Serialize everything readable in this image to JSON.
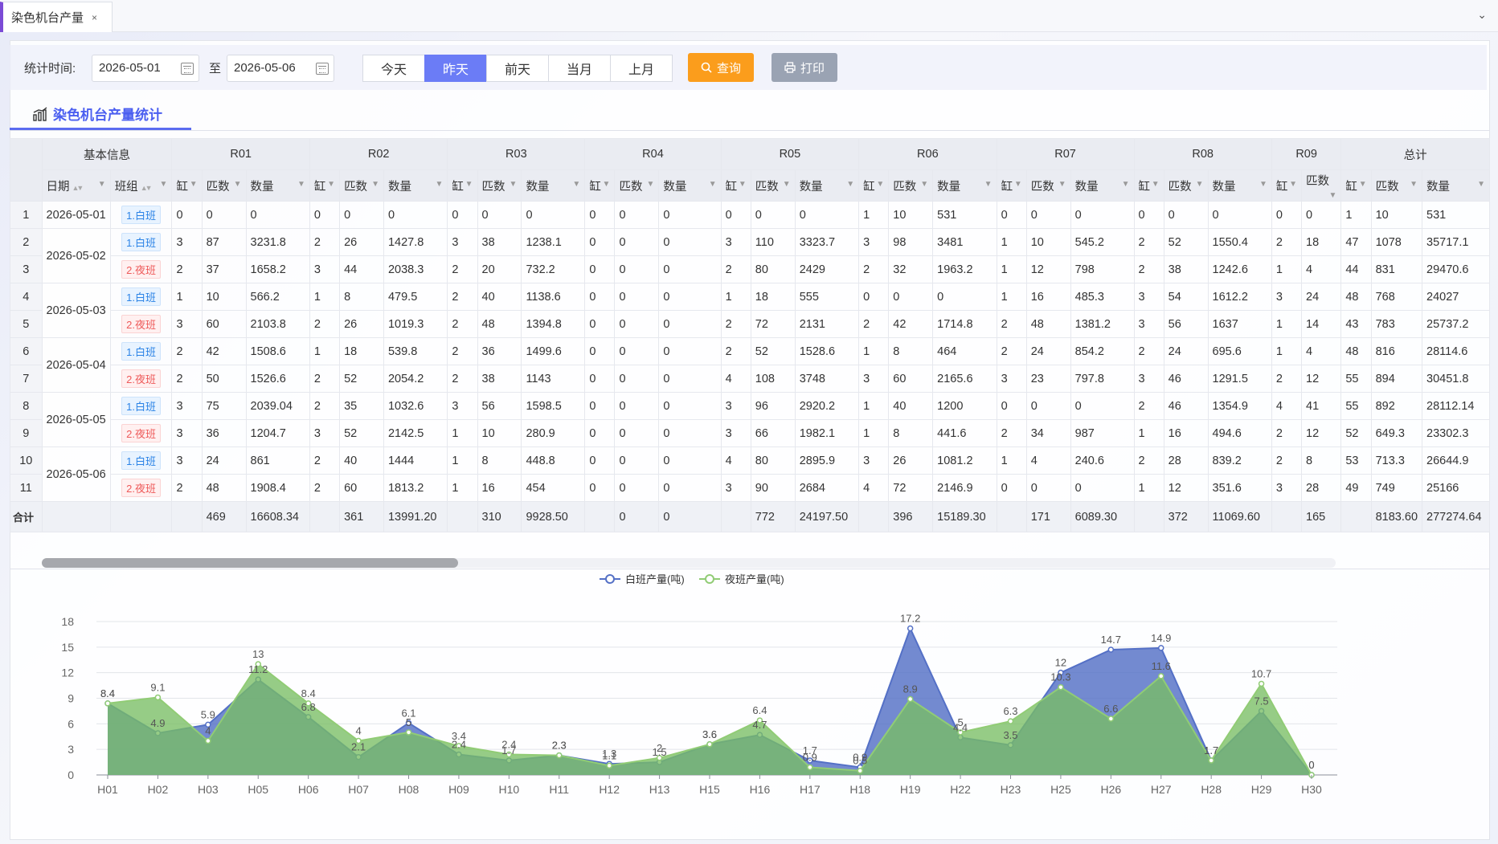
{
  "tabs": [
    {
      "label": "染色机台产量",
      "close": "×"
    }
  ],
  "tab_dropdown": "⌄",
  "filter": {
    "label": "统计时间:",
    "start": "2026-05-01",
    "sep": "至",
    "end": "2026-05-06",
    "quick": [
      {
        "label": "今天",
        "active": false
      },
      {
        "label": "昨天",
        "active": true
      },
      {
        "label": "前天",
        "active": false
      },
      {
        "label": "当月",
        "active": false
      },
      {
        "label": "上月",
        "active": false
      }
    ],
    "query_label": "查询",
    "print_label": "打印"
  },
  "section_title": "染色机台产量统计",
  "colors": {
    "accent": "#6b7cf6",
    "query": "#fb9d1c",
    "day_series": "#5470c6",
    "night_series": "#91cc75"
  },
  "table": {
    "group_basic": "基本信息",
    "groups": [
      "R01",
      "R02",
      "R03",
      "R04",
      "R05",
      "R06",
      "R07",
      "R08",
      "R09"
    ],
    "group_total": "总计",
    "col_date": "日期",
    "col_shift": "班组",
    "sub_cols": [
      "缸",
      "匹数",
      "数量"
    ],
    "rows": [
      {
        "n": "1",
        "date": "2026-05-01",
        "shift": "1.白班",
        "type": "day",
        "v": [
          "0",
          "0",
          "0",
          "0",
          "0",
          "0",
          "0",
          "0",
          "0",
          "0",
          "0",
          "0",
          "0",
          "0",
          "0",
          "1",
          "10",
          "531",
          "0",
          "0",
          "0",
          "0",
          "0",
          "0",
          "0",
          "0",
          "1",
          "10",
          "531"
        ]
      },
      {
        "n": "2",
        "date": "2026-05-02",
        "shift": "1.白班",
        "type": "day",
        "v": [
          "3",
          "87",
          "3231.8",
          "2",
          "26",
          "1427.8",
          "3",
          "38",
          "1238.1",
          "0",
          "0",
          "0",
          "3",
          "110",
          "3323.7",
          "3",
          "98",
          "3481",
          "1",
          "10",
          "545.2",
          "2",
          "52",
          "1550.4",
          "2",
          "18",
          "47",
          "1078",
          "35717.1"
        ]
      },
      {
        "n": "3",
        "date": "",
        "shift": "2.夜班",
        "type": "night",
        "v": [
          "2",
          "37",
          "1658.2",
          "3",
          "44",
          "2038.3",
          "2",
          "20",
          "732.2",
          "0",
          "0",
          "0",
          "2",
          "80",
          "2429",
          "2",
          "32",
          "1963.2",
          "1",
          "12",
          "798",
          "2",
          "38",
          "1242.6",
          "1",
          "4",
          "44",
          "831",
          "29470.6"
        ]
      },
      {
        "n": "4",
        "date": "2026-05-03",
        "shift": "1.白班",
        "type": "day",
        "v": [
          "1",
          "10",
          "566.2",
          "1",
          "8",
          "479.5",
          "2",
          "40",
          "1138.6",
          "0",
          "0",
          "0",
          "1",
          "18",
          "555",
          "0",
          "0",
          "0",
          "1",
          "16",
          "485.3",
          "3",
          "54",
          "1612.2",
          "3",
          "24",
          "48",
          "768",
          "24027"
        ]
      },
      {
        "n": "5",
        "date": "",
        "shift": "2.夜班",
        "type": "night",
        "v": [
          "3",
          "60",
          "2103.8",
          "2",
          "26",
          "1019.3",
          "2",
          "48",
          "1394.8",
          "0",
          "0",
          "0",
          "2",
          "72",
          "2131",
          "2",
          "42",
          "1714.8",
          "2",
          "48",
          "1381.2",
          "3",
          "56",
          "1637",
          "1",
          "14",
          "43",
          "783",
          "25737.2"
        ]
      },
      {
        "n": "6",
        "date": "2026-05-04",
        "shift": "1.白班",
        "type": "day",
        "v": [
          "2",
          "42",
          "1508.6",
          "1",
          "18",
          "539.8",
          "2",
          "36",
          "1499.6",
          "0",
          "0",
          "0",
          "2",
          "52",
          "1528.6",
          "1",
          "8",
          "464",
          "2",
          "24",
          "854.2",
          "2",
          "24",
          "695.6",
          "1",
          "4",
          "48",
          "816",
          "28114.6"
        ]
      },
      {
        "n": "7",
        "date": "",
        "shift": "2.夜班",
        "type": "night",
        "v": [
          "2",
          "50",
          "1526.6",
          "2",
          "52",
          "2054.2",
          "2",
          "38",
          "1143",
          "0",
          "0",
          "0",
          "4",
          "108",
          "3748",
          "3",
          "60",
          "2165.6",
          "3",
          "23",
          "797.8",
          "3",
          "46",
          "1291.5",
          "2",
          "12",
          "55",
          "894",
          "30451.8"
        ]
      },
      {
        "n": "8",
        "date": "2026-05-05",
        "shift": "1.白班",
        "type": "day",
        "v": [
          "3",
          "75",
          "2039.04",
          "2",
          "35",
          "1032.6",
          "3",
          "56",
          "1598.5",
          "0",
          "0",
          "0",
          "3",
          "96",
          "2920.2",
          "1",
          "40",
          "1200",
          "0",
          "0",
          "0",
          "2",
          "46",
          "1354.9",
          "4",
          "41",
          "55",
          "892",
          "28112.14"
        ]
      },
      {
        "n": "9",
        "date": "",
        "shift": "2.夜班",
        "type": "night",
        "v": [
          "3",
          "36",
          "1204.7",
          "3",
          "52",
          "2142.5",
          "1",
          "10",
          "280.9",
          "0",
          "0",
          "0",
          "3",
          "66",
          "1982.1",
          "1",
          "8",
          "441.6",
          "2",
          "34",
          "987",
          "1",
          "16",
          "494.6",
          "2",
          "12",
          "52",
          "649.3",
          "23302.3"
        ]
      },
      {
        "n": "10",
        "date": "2026-05-06",
        "shift": "1.白班",
        "type": "day",
        "v": [
          "3",
          "24",
          "861",
          "2",
          "40",
          "1444",
          "1",
          "8",
          "448.8",
          "0",
          "0",
          "0",
          "4",
          "80",
          "2895.9",
          "3",
          "26",
          "1081.2",
          "1",
          "4",
          "240.6",
          "2",
          "28",
          "839.2",
          "2",
          "8",
          "53",
          "713.3",
          "26644.9"
        ]
      },
      {
        "n": "11",
        "date": "",
        "shift": "2.夜班",
        "type": "night",
        "v": [
          "2",
          "48",
          "1908.4",
          "2",
          "60",
          "1813.2",
          "1",
          "16",
          "454",
          "0",
          "0",
          "0",
          "3",
          "90",
          "2684",
          "4",
          "72",
          "2146.9",
          "0",
          "0",
          "0",
          "1",
          "12",
          "351.6",
          "3",
          "28",
          "49",
          "749",
          "25166"
        ]
      }
    ],
    "total_label": "合计",
    "total": [
      "",
      "469",
      "16608.34",
      "",
      "361",
      "13991.20",
      "",
      "310",
      "9928.50",
      "",
      "0",
      "0",
      "",
      "772",
      "24197.50",
      "",
      "396",
      "15189.30",
      "",
      "171",
      "6089.30",
      "",
      "372",
      "11069.60",
      "",
      "165",
      "",
      "8183.60",
      "277274.64"
    ]
  },
  "chart_data": {
    "type": "area",
    "categories": [
      "H01",
      "H02",
      "H03",
      "H05",
      "H06",
      "H07",
      "H08",
      "H09",
      "H10",
      "H11",
      "H12",
      "H13",
      "H15",
      "H16",
      "H17",
      "H18",
      "H19",
      "H22",
      "H23",
      "H25",
      "H26",
      "H27",
      "H28",
      "H29",
      "H30"
    ],
    "series": [
      {
        "name": "白班产量(吨)",
        "values": [
          8.4,
          4.9,
          5.9,
          11.2,
          6.8,
          2.1,
          6.1,
          2.4,
          1.7,
          2.3,
          1.3,
          1.5,
          3.6,
          4.7,
          1.7,
          0.9,
          17.2,
          4.4,
          3.5,
          12,
          14.7,
          14.9,
          1.7,
          7.5,
          0
        ]
      },
      {
        "name": "夜班产量(吨)",
        "values": [
          8.4,
          9.1,
          4,
          13,
          8.4,
          4,
          5,
          3.4,
          2.4,
          2.3,
          1.1,
          2,
          3.6,
          6.4,
          0.9,
          0.5,
          8.9,
          5,
          6.3,
          10.3,
          6.6,
          11.6,
          1.7,
          10.7,
          0
        ]
      }
    ],
    "yticks": [
      "0",
      "3",
      "6",
      "9",
      "12",
      "15",
      "18"
    ],
    "ylim": [
      0,
      18
    ],
    "legend": "top-center",
    "grid": true
  }
}
